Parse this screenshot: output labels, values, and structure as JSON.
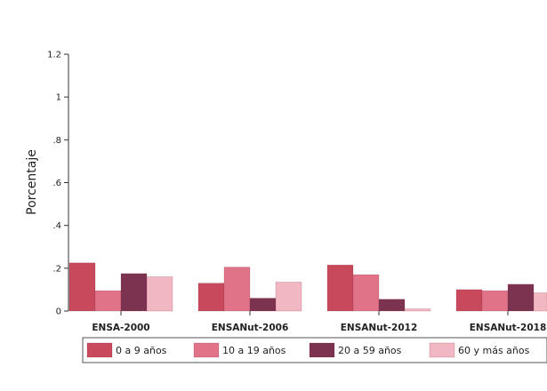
{
  "chart_data": {
    "type": "bar",
    "ylabel": "Porcentaje",
    "xlabel": "",
    "ylim": [
      0,
      1.2
    ],
    "yticks": [
      {
        "value": 0,
        "label": "0"
      },
      {
        "value": 0.2,
        "label": ".2"
      },
      {
        "value": 0.4,
        "label": ".4"
      },
      {
        "value": 0.6,
        "label": ".6"
      },
      {
        "value": 0.8,
        "label": ".8"
      },
      {
        "value": 1.0,
        "label": "1"
      },
      {
        "value": 1.2,
        "label": "1.2"
      }
    ],
    "categories": [
      "ENSA-2000",
      "ENSANut-2006",
      "ENSANut-2012",
      "ENSANut-2018"
    ],
    "series": [
      {
        "name": "0 a 9 años",
        "color": "#c8485c",
        "values": [
          0.225,
          0.13,
          0.215,
          0.1
        ]
      },
      {
        "name": "10 a 19 años",
        "color": "#e07388",
        "values": [
          0.095,
          0.205,
          0.17,
          0.095
        ]
      },
      {
        "name": "20 a 59 años",
        "color": "#7b3350",
        "values": [
          0.175,
          0.06,
          0.055,
          0.125
        ]
      },
      {
        "name": "60 y más años",
        "color": "#f1b7c3",
        "values": [
          0.16,
          0.135,
          0.01,
          0.085
        ]
      }
    ],
    "grid": false,
    "legend_position": "bottom"
  }
}
